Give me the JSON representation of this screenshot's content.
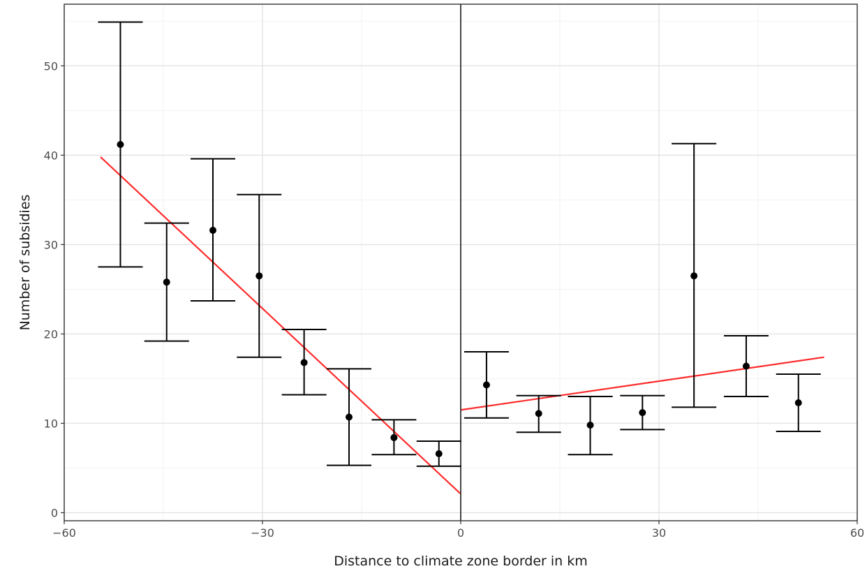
{
  "chart_data": {
    "type": "scatter",
    "title": "",
    "xlabel": "Distance to climate zone border in km",
    "ylabel": "Number of subsidies",
    "xlim": [
      -60,
      60
    ],
    "ylim": [
      0,
      56
    ],
    "x_ticks": [
      -60,
      -30,
      0,
      30,
      60
    ],
    "x_tick_labels": [
      "−60",
      "−30",
      "0",
      "30",
      "60"
    ],
    "y_ticks": [
      0,
      10,
      20,
      30,
      40,
      50
    ],
    "y_tick_labels": [
      "0",
      "10",
      "20",
      "30",
      "40",
      "50"
    ],
    "grid": true,
    "cutoff_x": 0,
    "points": [
      {
        "x": -51.5,
        "y": 41.2,
        "ymin": 27.5,
        "ymax": 54.9
      },
      {
        "x": -44.5,
        "y": 25.8,
        "ymin": 19.2,
        "ymax": 32.4
      },
      {
        "x": -37.5,
        "y": 31.6,
        "ymin": 23.7,
        "ymax": 39.6
      },
      {
        "x": -30.5,
        "y": 26.5,
        "ymin": 17.4,
        "ymax": 35.6
      },
      {
        "x": -23.7,
        "y": 16.8,
        "ymin": 13.2,
        "ymax": 20.5
      },
      {
        "x": -16.9,
        "y": 10.7,
        "ymin": 5.3,
        "ymax": 16.1
      },
      {
        "x": -10.1,
        "y": 8.4,
        "ymin": 6.5,
        "ymax": 10.4
      },
      {
        "x": -3.3,
        "y": 6.6,
        "ymin": 5.2,
        "ymax": 8.0
      },
      {
        "x": 3.9,
        "y": 14.3,
        "ymin": 10.6,
        "ymax": 18.0
      },
      {
        "x": 11.8,
        "y": 11.1,
        "ymin": 9.0,
        "ymax": 13.1
      },
      {
        "x": 19.6,
        "y": 9.8,
        "ymin": 6.5,
        "ymax": 13.0
      },
      {
        "x": 27.5,
        "y": 11.2,
        "ymin": 9.3,
        "ymax": 13.1
      },
      {
        "x": 35.3,
        "y": 26.5,
        "ymin": 11.8,
        "ymax": 41.3
      },
      {
        "x": 43.2,
        "y": 16.4,
        "ymin": 13.0,
        "ymax": 19.8
      },
      {
        "x": 51.1,
        "y": 12.3,
        "ymin": 9.1,
        "ymax": 15.5
      }
    ],
    "fit_lines": [
      {
        "x": [
          -54.5,
          0
        ],
        "y": [
          39.8,
          2.1
        ],
        "color": "#ff2a2a"
      },
      {
        "x": [
          0,
          55
        ],
        "y": [
          11.5,
          17.4
        ],
        "color": "#ff2a2a"
      }
    ]
  }
}
